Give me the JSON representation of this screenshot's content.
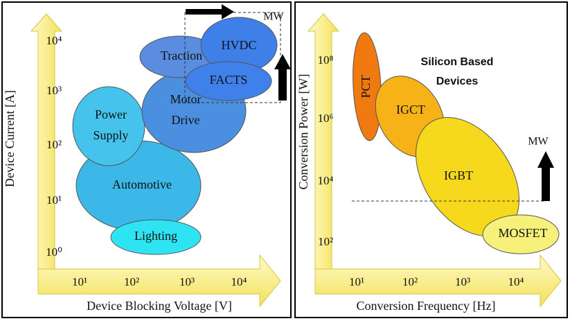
{
  "panels": [
    {
      "y_axis_label": "Device Current [A]",
      "x_axis_label": "Device Blocking Voltage [V]",
      "y_ticks": [
        "10⁴",
        "10³",
        "10²",
        "10¹",
        "10⁰"
      ],
      "x_ticks": [
        "10¹",
        "10²",
        "10³",
        "10⁴"
      ],
      "regions": [
        {
          "label": "Automotive"
        },
        {
          "label": "Power Supply"
        },
        {
          "label": "Lighting"
        },
        {
          "label": "Motor Drive"
        },
        {
          "label": "Traction"
        },
        {
          "label": "HVDC"
        },
        {
          "label": "FACTS"
        }
      ],
      "annotations": [
        "MW"
      ]
    },
    {
      "y_axis_label": "Conversion Power [W]",
      "x_axis_label": "Conversion Frequency [Hz]",
      "y_ticks": [
        "10⁸",
        "10⁶",
        "10⁴",
        "10²"
      ],
      "x_ticks": [
        "10¹",
        "10²",
        "10³",
        "10⁴"
      ],
      "regions": [
        {
          "label": "PCT"
        },
        {
          "label": "IGCT"
        },
        {
          "label": "IGBT"
        },
        {
          "label": "MOSFET"
        }
      ],
      "annotations": [
        "Silicon Based",
        "Devices",
        "MW"
      ]
    }
  ]
}
